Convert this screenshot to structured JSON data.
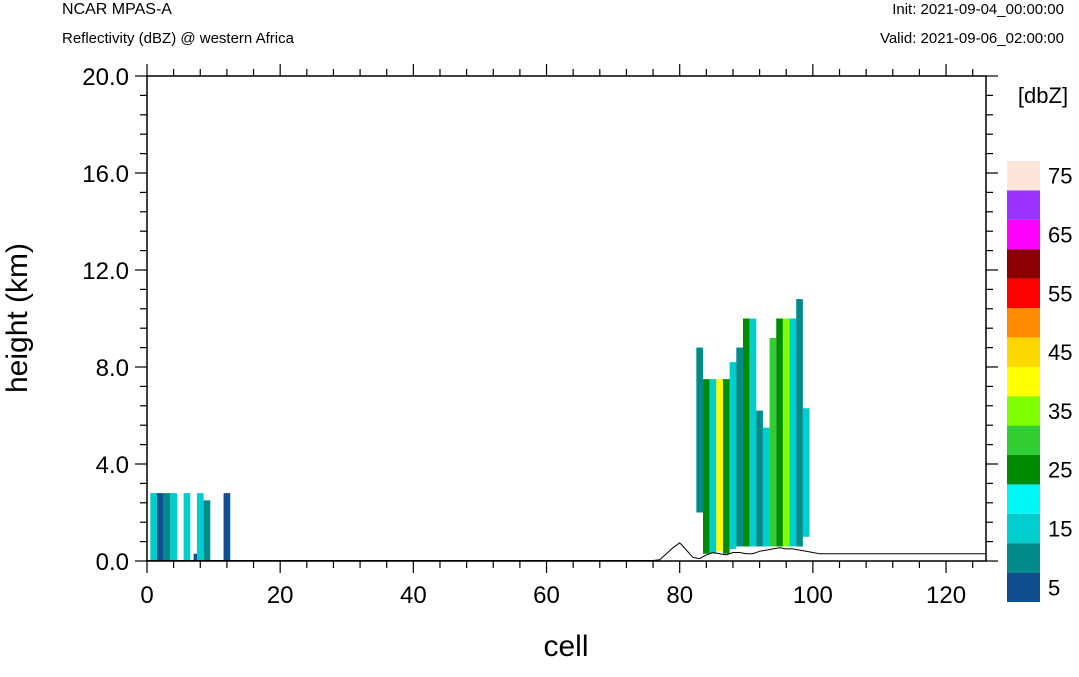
{
  "header": {
    "model": "NCAR MPAS-A",
    "field": "Reflectivity (dBZ) @ western Africa",
    "init": "Init: 2021-09-04_00:00:00",
    "valid": "Valid: 2021-09-06_02:00:00"
  },
  "chart_data": {
    "type": "heatmap",
    "title": "Reflectivity (dBZ) @ western Africa",
    "xlabel": "cell",
    "ylabel": "height (km)",
    "xlim": [
      0,
      126
    ],
    "ylim": [
      0,
      20
    ],
    "x_ticks": [
      0,
      20,
      40,
      60,
      80,
      100,
      120
    ],
    "x_tick_labels": [
      "0",
      "20",
      "40",
      "60",
      "80",
      "100",
      "120"
    ],
    "y_ticks": [
      0,
      4,
      8,
      12,
      16,
      20
    ],
    "y_tick_labels": [
      "0.0",
      "4.0",
      "8.0",
      "12.0",
      "16.0",
      "20.0"
    ],
    "colorbar": {
      "title": "[dbZ]",
      "levels": [
        5,
        10,
        15,
        20,
        25,
        30,
        35,
        40,
        45,
        50,
        55,
        60,
        65,
        70,
        75
      ],
      "labels": [
        "5",
        "15",
        "25",
        "35",
        "45",
        "55",
        "65",
        "75"
      ],
      "colors": [
        "#0f4f8f",
        "#008b8b",
        "#00cdcd",
        "#00f5f5",
        "#008b00",
        "#32cd32",
        "#7fff00",
        "#ffff00",
        "#ffd700",
        "#ff8c00",
        "#ff0000",
        "#8b0000",
        "#ff00ff",
        "#9b30ff",
        "#ffe4da"
      ]
    },
    "cells": [
      {
        "x0": 0.5,
        "x1": 1.5,
        "y0": 0.0,
        "y1": 2.8,
        "dbz": 15
      },
      {
        "x0": 1.5,
        "x1": 2.5,
        "y0": 0.0,
        "y1": 2.8,
        "dbz": 5
      },
      {
        "x0": 2.5,
        "x1": 3.5,
        "y0": 0.0,
        "y1": 2.8,
        "dbz": 10
      },
      {
        "x0": 3.5,
        "x1": 4.5,
        "y0": 0.0,
        "y1": 2.8,
        "dbz": 15
      },
      {
        "x0": 5.5,
        "x1": 6.5,
        "y0": 0.0,
        "y1": 2.8,
        "dbz": 15
      },
      {
        "x0": 7.0,
        "x1": 7.6,
        "y0": 0.0,
        "y1": 0.3,
        "dbz": 5
      },
      {
        "x0": 7.5,
        "x1": 8.5,
        "y0": 0.0,
        "y1": 2.8,
        "dbz": 15
      },
      {
        "x0": 8.5,
        "x1": 9.5,
        "y0": 0.0,
        "y1": 2.5,
        "dbz": 10
      },
      {
        "x0": 11.5,
        "x1": 12.5,
        "y0": 0.0,
        "y1": 2.8,
        "dbz": 5
      },
      {
        "x0": 82.5,
        "x1": 83.5,
        "y0": 2.0,
        "y1": 8.8,
        "dbz": 10
      },
      {
        "x0": 83.5,
        "x1": 84.5,
        "y0": 0.3,
        "y1": 7.5,
        "dbz": 25
      },
      {
        "x0": 84.5,
        "x1": 85.5,
        "y0": 0.3,
        "y1": 7.5,
        "dbz": 15
      },
      {
        "x0": 85.5,
        "x1": 86.5,
        "y0": 0.4,
        "y1": 7.5,
        "dbz": 40
      },
      {
        "x0": 86.5,
        "x1": 87.5,
        "y0": 0.3,
        "y1": 7.5,
        "dbz": 25
      },
      {
        "x0": 87.5,
        "x1": 88.5,
        "y0": 0.5,
        "y1": 8.2,
        "dbz": 15
      },
      {
        "x0": 88.5,
        "x1": 89.5,
        "y0": 0.6,
        "y1": 8.8,
        "dbz": 10
      },
      {
        "x0": 89.5,
        "x1": 90.5,
        "y0": 0.6,
        "y1": 10.0,
        "dbz": 25
      },
      {
        "x0": 90.5,
        "x1": 91.5,
        "y0": 0.6,
        "y1": 10.0,
        "dbz": 15
      },
      {
        "x0": 91.5,
        "x1": 92.5,
        "y0": 0.6,
        "y1": 6.2,
        "dbz": 10
      },
      {
        "x0": 92.5,
        "x1": 93.5,
        "y0": 0.6,
        "y1": 5.5,
        "dbz": 15
      },
      {
        "x0": 93.5,
        "x1": 94.5,
        "y0": 0.6,
        "y1": 9.2,
        "dbz": 30
      },
      {
        "x0": 94.5,
        "x1": 95.5,
        "y0": 0.6,
        "y1": 10.0,
        "dbz": 25
      },
      {
        "x0": 95.5,
        "x1": 96.5,
        "y0": 0.6,
        "y1": 10.0,
        "dbz": 35
      },
      {
        "x0": 96.5,
        "x1": 97.5,
        "y0": 0.6,
        "y1": 10.0,
        "dbz": 15
      },
      {
        "x0": 97.5,
        "x1": 98.5,
        "y0": 0.6,
        "y1": 10.8,
        "dbz": 10
      },
      {
        "x0": 98.5,
        "x1": 99.5,
        "y0": 1.0,
        "y1": 6.3,
        "dbz": 15
      }
    ],
    "terrain": {
      "x": [
        0,
        76,
        77,
        78,
        79,
        80,
        81,
        82,
        83,
        84,
        85,
        86,
        87,
        88,
        89,
        90,
        91,
        92,
        93,
        94,
        95,
        96,
        97,
        98,
        99,
        100,
        101,
        105,
        110,
        115,
        120,
        126
      ],
      "y": [
        0.02,
        0.02,
        0.05,
        0.3,
        0.55,
        0.75,
        0.45,
        0.15,
        0.1,
        0.25,
        0.35,
        0.3,
        0.25,
        0.35,
        0.35,
        0.3,
        0.3,
        0.4,
        0.45,
        0.5,
        0.55,
        0.5,
        0.5,
        0.45,
        0.4,
        0.35,
        0.3,
        0.3,
        0.3,
        0.3,
        0.3,
        0.3
      ]
    }
  }
}
